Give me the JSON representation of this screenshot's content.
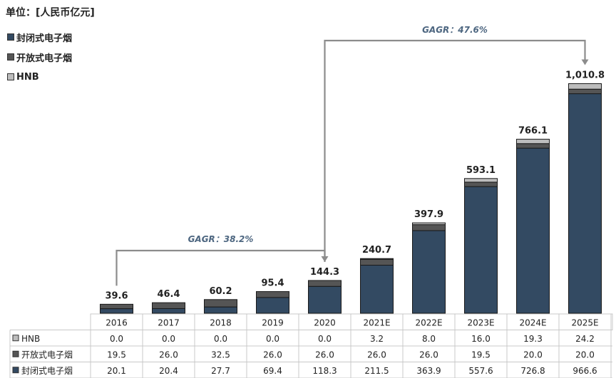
{
  "unit_label": "单位：[人民币亿元]",
  "legend": [
    {
      "name": "封闭式电子烟",
      "color": "#334a62"
    },
    {
      "name": "开放式电子烟",
      "color": "#555555"
    },
    {
      "name": "HNB",
      "color": "#bdbdbd"
    }
  ],
  "chart_data": {
    "type": "bar",
    "stacked": true,
    "categories": [
      "2016",
      "2017",
      "2018",
      "2019",
      "2020",
      "2021E",
      "2022E",
      "2023E",
      "2024E",
      "2025E"
    ],
    "series": [
      {
        "name": "封闭式电子烟",
        "values": [
          20.1,
          20.4,
          27.7,
          69.4,
          118.3,
          211.5,
          363.9,
          557.6,
          726.8,
          966.6
        ],
        "display": [
          "20.1",
          "20.4",
          "27.7",
          "69.4",
          "118.3",
          "211.5",
          "363.9",
          "557.6",
          "726.8",
          "966.6"
        ],
        "color": "#334a62"
      },
      {
        "name": "开放式电子烟",
        "values": [
          19.5,
          26.0,
          32.5,
          26.0,
          26.0,
          26.0,
          26.0,
          19.5,
          20.0,
          20.0
        ],
        "display": [
          "19.5",
          "26.0",
          "32.5",
          "26.0",
          "26.0",
          "26.0",
          "26.0",
          "19.5",
          "20.0",
          "20.0"
        ],
        "color": "#555555"
      },
      {
        "name": "HNB",
        "values": [
          0.0,
          0.0,
          0.0,
          0.0,
          0.0,
          3.2,
          8.0,
          16.0,
          19.3,
          24.2
        ],
        "display": [
          "0.0",
          "0.0",
          "0.0",
          "0.0",
          "0.0",
          "3.2",
          "8.0",
          "16.0",
          "19.3",
          "24.2"
        ],
        "color": "#bdbdbd"
      }
    ],
    "totals": [
      "39.6",
      "46.4",
      "60.2",
      "95.4",
      "144.3",
      "240.7",
      "397.9",
      "593.1",
      "766.1",
      "1,010.8"
    ],
    "table_rows_order": [
      "HNB",
      "开放式电子烟",
      "封闭式电子烟"
    ],
    "annotations": [
      {
        "text": "GAGR：38.2%",
        "from": "2016",
        "to": "2020"
      },
      {
        "text": "GAGR：47.6%",
        "from": "2020",
        "to": "2025E"
      }
    ],
    "ylim": [
      0,
      1050
    ]
  }
}
